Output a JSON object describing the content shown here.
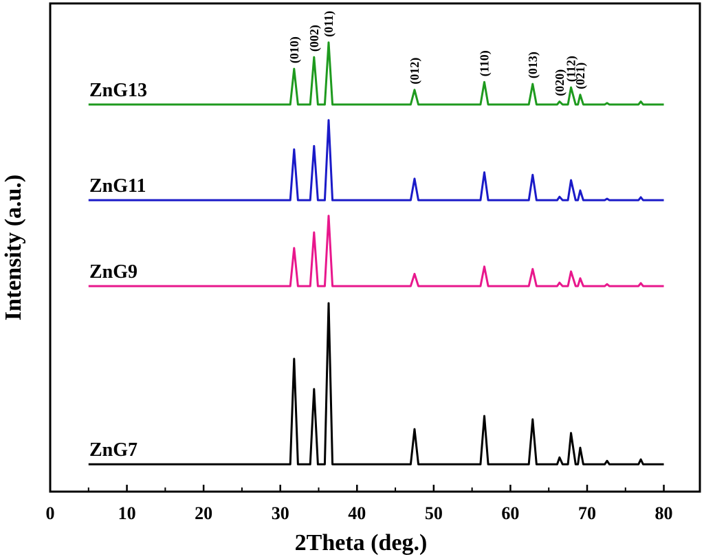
{
  "chart_data": {
    "type": "line",
    "xlabel": "2Theta (deg.)",
    "ylabel": "Intensity (a.u.)",
    "xlim": [
      0,
      84.7
    ],
    "ylim": [
      0,
      100
    ],
    "xticks": [
      0,
      10,
      20,
      30,
      40,
      50,
      60,
      70,
      80
    ],
    "xticks_minor": [
      5,
      15,
      25,
      35,
      45,
      55,
      65,
      75
    ],
    "x": [
      5,
      31.3,
      31.8,
      32.3,
      33.9,
      34.4,
      34.9,
      35.8,
      36.3,
      36.8,
      47.0,
      47.5,
      48.0,
      56.1,
      56.6,
      57.1,
      62.4,
      62.9,
      63.4,
      66.1,
      66.4,
      66.8,
      67.5,
      67.9,
      68.5,
      68.8,
      69.1,
      69.5,
      72.3,
      72.6,
      72.9,
      76.7,
      77.0,
      77.3,
      80
    ],
    "series": [
      {
        "name": "ZnG7",
        "color": "#000000",
        "values": [
          5.6,
          5.6,
          27.2,
          5.6,
          5.6,
          21.0,
          5.6,
          5.6,
          38.6,
          5.6,
          5.6,
          12.8,
          5.6,
          5.6,
          15.5,
          5.6,
          5.6,
          14.8,
          5.6,
          5.6,
          7.0,
          5.6,
          5.6,
          12.0,
          5.6,
          5.6,
          9.0,
          5.6,
          5.6,
          6.3,
          5.6,
          5.6,
          6.6,
          5.6,
          5.6
        ]
      },
      {
        "name": "ZnG9",
        "color": "#e8178c",
        "values": [
          42.1,
          42.1,
          49.9,
          42.1,
          42.1,
          53.1,
          42.1,
          42.1,
          56.5,
          42.1,
          42.1,
          44.6,
          42.1,
          42.1,
          46.1,
          42.1,
          42.1,
          45.6,
          42.1,
          42.1,
          42.8,
          42.1,
          42.1,
          45.1,
          42.1,
          42.1,
          43.7,
          42.1,
          42.1,
          42.5,
          42.1,
          42.1,
          42.7,
          42.1,
          42.1
        ]
      },
      {
        "name": "ZnG11",
        "color": "#1a1ac8",
        "values": [
          59.7,
          59.7,
          70.1,
          59.7,
          59.7,
          70.8,
          59.7,
          59.7,
          76.1,
          59.7,
          59.7,
          64.1,
          59.7,
          59.7,
          65.4,
          59.7,
          59.7,
          64.9,
          59.7,
          59.7,
          60.4,
          59.7,
          59.7,
          63.8,
          59.7,
          59.7,
          61.7,
          59.7,
          59.7,
          60.0,
          59.7,
          59.7,
          60.3,
          59.7,
          59.7
        ]
      },
      {
        "name": "ZnG13",
        "color": "#1e9a1e",
        "values": [
          79.3,
          79.3,
          86.6,
          79.3,
          79.3,
          89.0,
          79.3,
          79.3,
          92.0,
          79.3,
          79.3,
          82.3,
          79.3,
          79.3,
          83.9,
          79.3,
          79.3,
          83.5,
          79.3,
          79.3,
          79.9,
          79.3,
          79.3,
          82.8,
          79.3,
          79.3,
          81.3,
          79.3,
          79.3,
          79.6,
          79.3,
          79.3,
          79.9,
          79.3,
          79.3
        ]
      }
    ],
    "annotations": [
      {
        "text": "(010)",
        "x": 31.8
      },
      {
        "text": "(002)",
        "x": 34.4
      },
      {
        "text": "(011)",
        "x": 36.3
      },
      {
        "text": "(012)",
        "x": 47.5
      },
      {
        "text": "(110)",
        "x": 56.6
      },
      {
        "text": "(013)",
        "x": 62.9
      },
      {
        "text": "(020)",
        "x": 66.4
      },
      {
        "text": "(112)",
        "x": 67.9
      },
      {
        "text": "(021)",
        "x": 69.1
      }
    ]
  }
}
